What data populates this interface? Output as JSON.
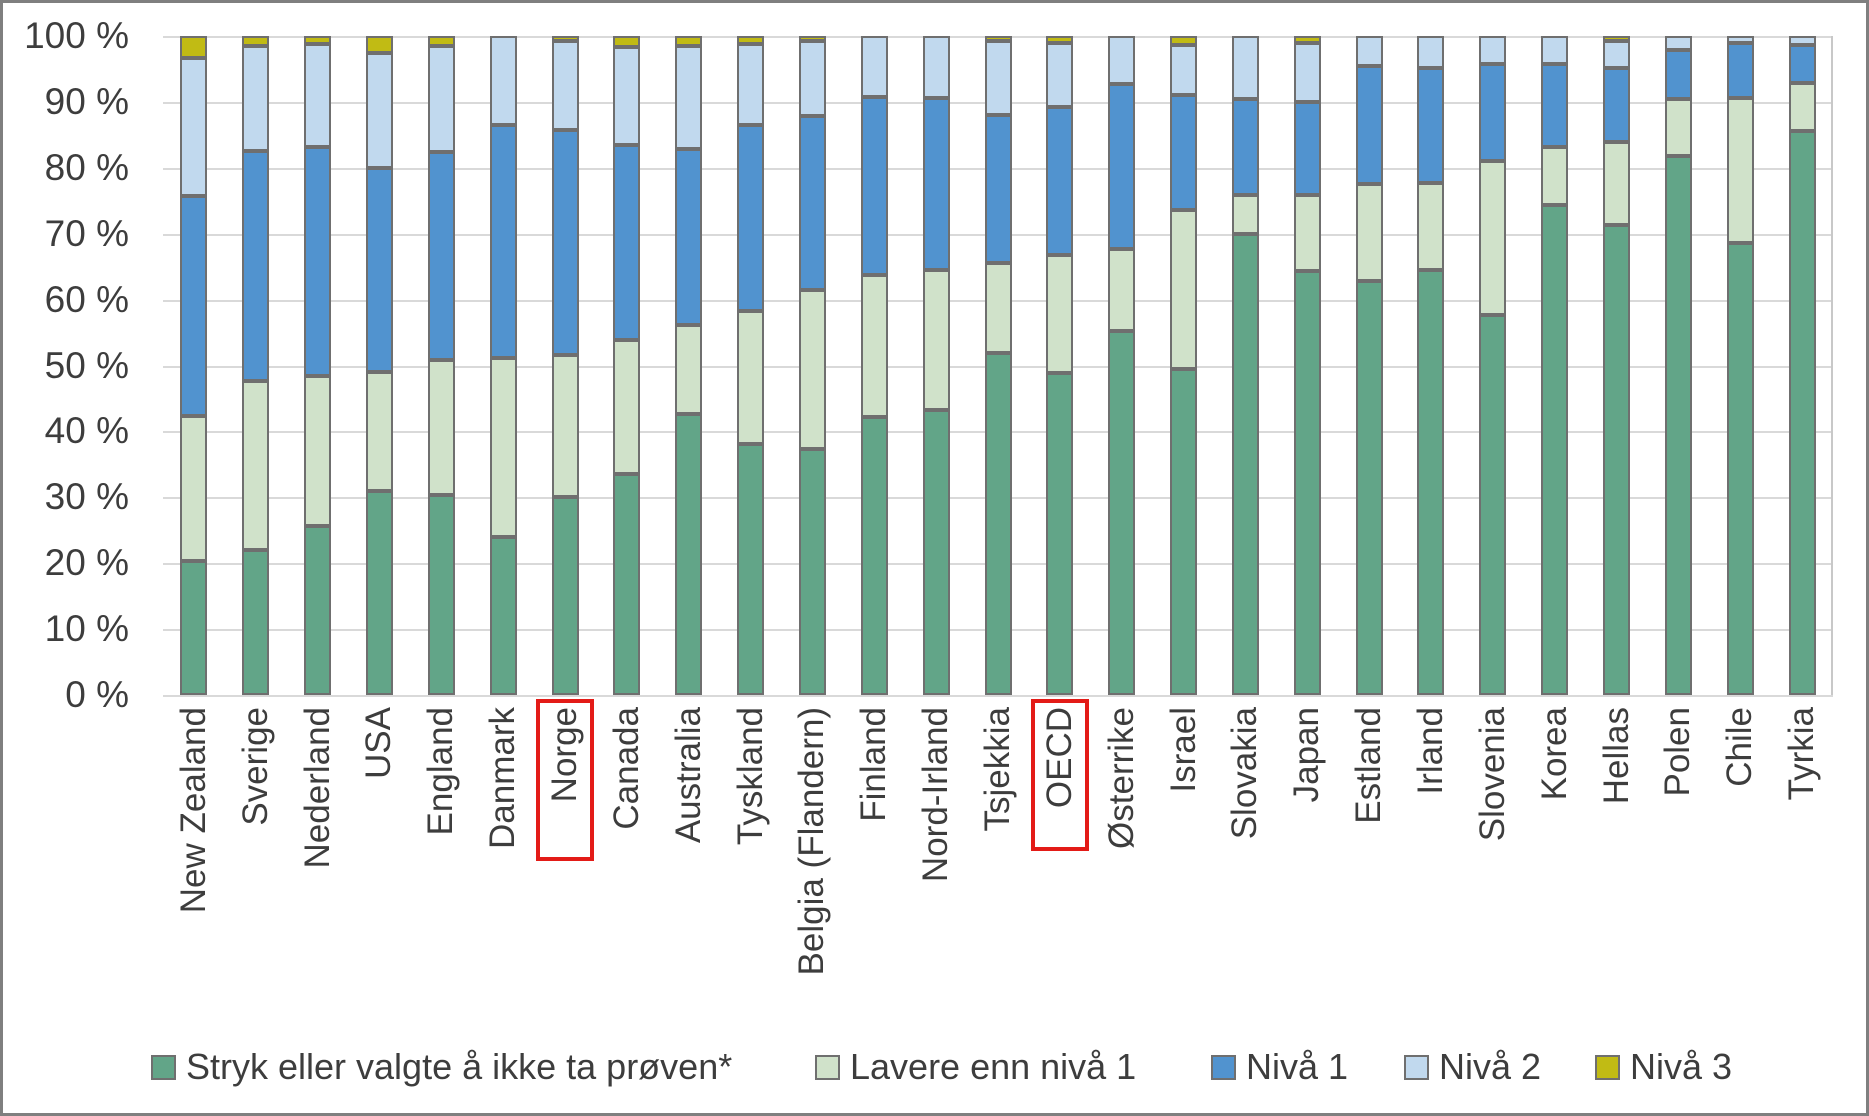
{
  "chart_data": {
    "type": "bar",
    "stacked": true,
    "stacked_unit": "percent",
    "title": "",
    "xlabel": "",
    "ylabel": "",
    "grid": true,
    "legend_position": "bottom",
    "ylim": [
      0,
      100
    ],
    "y_tick_step": 10,
    "y_tick_labels": [
      "0 %",
      "10 %",
      "20 %",
      "30 %",
      "40 %",
      "50 %",
      "60 %",
      "70 %",
      "80 %",
      "90 %",
      "100 %"
    ],
    "categories": [
      "New Zealand",
      "Sverige",
      "Nederland",
      "USA",
      "England",
      "Danmark",
      "Norge",
      "Canada",
      "Australia",
      "Tyskland",
      "Belgia (Flandern)",
      "Finland",
      "Nord-Irland",
      "Tsjekkia",
      "OECD",
      "Østerrike",
      "Israel",
      "Slovakia",
      "Japan",
      "Estland",
      "Irland",
      "Slovenia",
      "Korea",
      "Hellas",
      "Polen",
      "Chile",
      "Tyrkia"
    ],
    "highlighted_categories": [
      "Norge",
      "OECD"
    ],
    "highlight_color": "#e31b17",
    "series": [
      {
        "name": "Stryk eller valgte å ikke ta prøven*",
        "key": "stryk-eller-ikke-tatt",
        "color": "#62a588",
        "values": [
          20.3,
          22.0,
          25.6,
          31.0,
          30.4,
          24.0,
          30.0,
          33.6,
          42.6,
          38.1,
          37.3,
          42.2,
          43.2,
          51.9,
          48.9,
          55.3,
          49.4,
          70.0,
          64.4,
          62.9,
          64.5,
          57.6,
          74.4,
          71.3,
          81.8,
          68.6,
          85.6
        ]
      },
      {
        "name": "Lavere enn nivå 1",
        "key": "lavere-enn-niva-1",
        "color": "#d0e2ca",
        "values": [
          22.1,
          25.7,
          22.8,
          18.0,
          20.4,
          27.1,
          21.6,
          20.3,
          13.6,
          20.1,
          24.2,
          21.5,
          21.3,
          13.7,
          17.9,
          12.4,
          24.2,
          5.9,
          11.5,
          14.6,
          13.2,
          23.4,
          8.7,
          12.6,
          8.7,
          22.0,
          7.3
        ]
      },
      {
        "name": "Nivå 1",
        "key": "niva-1",
        "color": "#5193cf",
        "values": [
          33.4,
          34.9,
          34.8,
          30.9,
          31.6,
          35.4,
          34.1,
          29.6,
          26.6,
          28.3,
          26.3,
          27.1,
          26.1,
          22.4,
          22.4,
          25.0,
          17.5,
          14.6,
          14.1,
          17.9,
          17.5,
          14.7,
          12.6,
          11.3,
          7.4,
          8.4,
          5.8
        ]
      },
      {
        "name": "Nivå 2",
        "key": "niva-2",
        "color": "#c1d9ee",
        "values": [
          20.9,
          15.9,
          15.6,
          17.6,
          16.1,
          13.5,
          13.6,
          14.8,
          15.7,
          12.3,
          11.4,
          9.2,
          9.4,
          11.2,
          9.7,
          7.3,
          7.6,
          9.5,
          9.0,
          4.6,
          4.8,
          4.3,
          4.3,
          4.0,
          2.1,
          1.0,
          1.3
        ]
      },
      {
        "name": "Nivå 3",
        "key": "niva-3",
        "color": "#c1bb14",
        "values": [
          3.3,
          1.5,
          1.2,
          2.5,
          1.5,
          0,
          0.7,
          1.7,
          1.5,
          1.2,
          0.8,
          0,
          0,
          0.8,
          1.1,
          0,
          1.3,
          0,
          1.0,
          0,
          0,
          0,
          0,
          0.8,
          0,
          0,
          0
        ]
      }
    ],
    "colors": {
      "gridline": "#d9d9d9",
      "bar_border": "#6f6f6f",
      "text": "#3d3d3d",
      "chart_border": "#7f7f7f",
      "background": "#ffffff"
    }
  }
}
